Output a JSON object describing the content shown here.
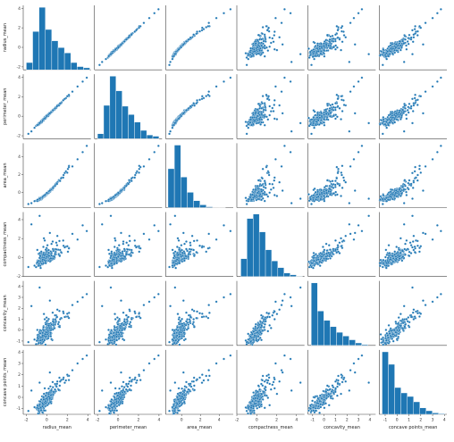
{
  "chart_data": {
    "type": "pairplot",
    "variables": [
      "radius_mean",
      "perimeter_mean",
      "area_mean",
      "compactness_mean",
      "concavity_mean",
      "concave points_mean"
    ],
    "diagonal": "histogram",
    "off_diagonal": "scatter",
    "marker_color": "#1f77b4",
    "bar_color": "#1f77b4",
    "axes": {
      "radius_mean": {
        "range": [
          -2.3,
          4.3
        ],
        "ticks": [
          -2,
          0,
          2,
          4
        ]
      },
      "perimeter_mean": {
        "range": [
          -2.3,
          4.3
        ],
        "ticks": [
          -2,
          0,
          2,
          4
        ]
      },
      "area_mean": {
        "range": [
          -1.7,
          5.5
        ],
        "ticks": [
          0,
          2,
          4
        ]
      },
      "compactness_mean": {
        "range": [
          -2.0,
          4.8
        ],
        "ticks": [
          -2,
          0,
          2,
          4
        ]
      },
      "concavity_mean": {
        "range": [
          -1.4,
          4.5
        ],
        "ticks": [
          -1,
          0,
          1,
          2,
          3,
          4
        ]
      },
      "concave points_mean": {
        "range": [
          -1.5,
          4.2
        ],
        "ticks": [
          -1,
          0,
          1,
          2,
          3,
          4
        ]
      }
    },
    "diagonal_histograms": {
      "radius_mean": {
        "bin_start": -2.0,
        "bin_width": 0.62,
        "counts": [
          18,
          95,
          155,
          100,
          72,
          55,
          42,
          18,
          8,
          5
        ]
      },
      "perimeter_mean": {
        "bin_start": -2.0,
        "bin_width": 0.6,
        "counts": [
          12,
          80,
          150,
          115,
          78,
          58,
          40,
          20,
          9,
          6
        ]
      },
      "area_mean": {
        "bin_start": -1.45,
        "bin_width": 0.68,
        "counts": [
          140,
          225,
          110,
          55,
          25,
          10,
          3,
          1,
          1
        ]
      },
      "compactness_mean": {
        "bin_start": -1.6,
        "bin_width": 0.62,
        "counts": [
          40,
          130,
          140,
          100,
          60,
          35,
          20,
          8,
          4,
          1
        ]
      },
      "concavity_mean": {
        "bin_start": -1.12,
        "bin_width": 0.55,
        "counts": [
          200,
          110,
          80,
          60,
          42,
          30,
          18,
          8,
          3
        ]
      },
      "concave points_mean": {
        "bin_start": -1.26,
        "bin_width": 0.53,
        "counts": [
          175,
          140,
          75,
          60,
          50,
          35,
          18,
          10,
          4,
          2
        ]
      }
    },
    "samples": [
      [
        -1.2,
        -1.18,
        -0.98,
        -0.85,
        -0.86,
        -0.87
      ],
      [
        -0.9,
        -0.9,
        -0.82,
        -0.5,
        -0.7,
        -0.75
      ],
      [
        -0.6,
        -0.58,
        -0.62,
        -1.1,
        -0.95,
        -0.9
      ],
      [
        -0.4,
        -0.42,
        -0.48,
        -0.2,
        -0.5,
        -0.55
      ],
      [
        -0.3,
        -0.28,
        -0.38,
        0.3,
        0.0,
        -0.2
      ],
      [
        -0.1,
        -0.12,
        -0.22,
        -0.6,
        -0.6,
        -0.5
      ],
      [
        0.0,
        0.02,
        -0.05,
        0.1,
        -0.2,
        -0.1
      ],
      [
        0.2,
        0.22,
        0.12,
        0.5,
        0.4,
        0.3
      ],
      [
        0.4,
        0.41,
        0.3,
        -0.1,
        0.0,
        0.2
      ],
      [
        0.6,
        0.62,
        0.5,
        0.9,
        0.8,
        0.9
      ],
      [
        0.8,
        0.8,
        0.72,
        0.3,
        0.5,
        0.7
      ],
      [
        1.0,
        1.02,
        0.95,
        1.3,
        1.2,
        1.2
      ],
      [
        1.3,
        1.33,
        1.28,
        0.8,
        1.0,
        1.4
      ],
      [
        1.6,
        1.63,
        1.65,
        1.8,
        1.7,
        1.6
      ],
      [
        2.0,
        2.05,
        2.2,
        1.2,
        1.5,
        2.0
      ],
      [
        2.5,
        2.52,
        2.9,
        2.5,
        2.3,
        2.4
      ],
      [
        3.0,
        3.05,
        3.7,
        1.9,
        2.6,
        3.0
      ],
      [
        3.5,
        3.55,
        4.5,
        3.4,
        3.0,
        3.4
      ],
      [
        3.9,
        3.95,
        5.2,
        2.8,
        3.3,
        3.7
      ],
      [
        -1.5,
        -1.55,
        -1.2,
        3.5,
        2.2,
        0.6
      ],
      [
        -0.7,
        -0.7,
        -0.7,
        4.4,
        3.9,
        1.3
      ],
      [
        -1.8,
        -1.8,
        -1.3,
        -1.0,
        -1.1,
        -1.2
      ],
      [
        -0.2,
        -0.25,
        -0.3,
        1.8,
        1.0,
        0.8
      ],
      [
        0.3,
        0.3,
        0.2,
        2.6,
        2.7,
        2.2
      ]
    ]
  }
}
